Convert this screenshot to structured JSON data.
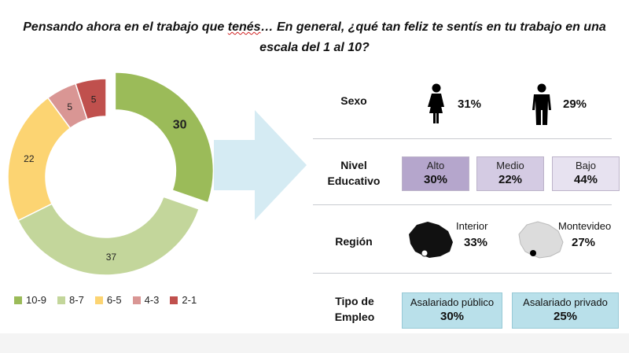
{
  "title": {
    "part1": "Pensando ahora en el trabajo que ",
    "underlined": "tenés",
    "part2": "… En general, ¿qué tan feliz te sentís en tu trabajo en una escala del 1 al 10?"
  },
  "chart_data": {
    "type": "pie",
    "categories": [
      "10-9",
      "8-7",
      "6-5",
      "4-3",
      "2-1"
    ],
    "values": [
      30,
      37,
      22,
      5,
      5
    ],
    "colors": [
      "#9bbb59",
      "#c3d69b",
      "#fcd472",
      "#d99694",
      "#c0504d"
    ],
    "exploded": "10-9",
    "legend": "bottom"
  },
  "arrow_icon": "right-arrow-icon",
  "rows": {
    "sexo": {
      "label": "Sexo",
      "female_icon": "female-icon",
      "female_value": "31%",
      "male_icon": "male-icon",
      "male_value": "29%"
    },
    "educativo": {
      "label_line1": "Nivel",
      "label_line2": "Educativo",
      "items": [
        {
          "name": "Alto",
          "value": "30%",
          "color": "#b5a6cc"
        },
        {
          "name": "Medio",
          "value": "22%",
          "color": "#d4cbe3"
        },
        {
          "name": "Bajo",
          "value": "44%",
          "color": "#e7e2f0"
        }
      ]
    },
    "region": {
      "label": "Región",
      "items": [
        {
          "name": "Interior",
          "value": "33%",
          "icon": "uruguay-map-interior-icon",
          "color": "#111111"
        },
        {
          "name": "Montevideo",
          "value": "27%",
          "icon": "uruguay-map-montevideo-icon",
          "color": "#d9d9d9"
        }
      ]
    },
    "empleo": {
      "label_line1": "Tipo de",
      "label_line2": "Empleo",
      "items": [
        {
          "name": "Asalariado público",
          "value": "30%"
        },
        {
          "name": "Asalariado privado",
          "value": "25%"
        }
      ]
    }
  }
}
